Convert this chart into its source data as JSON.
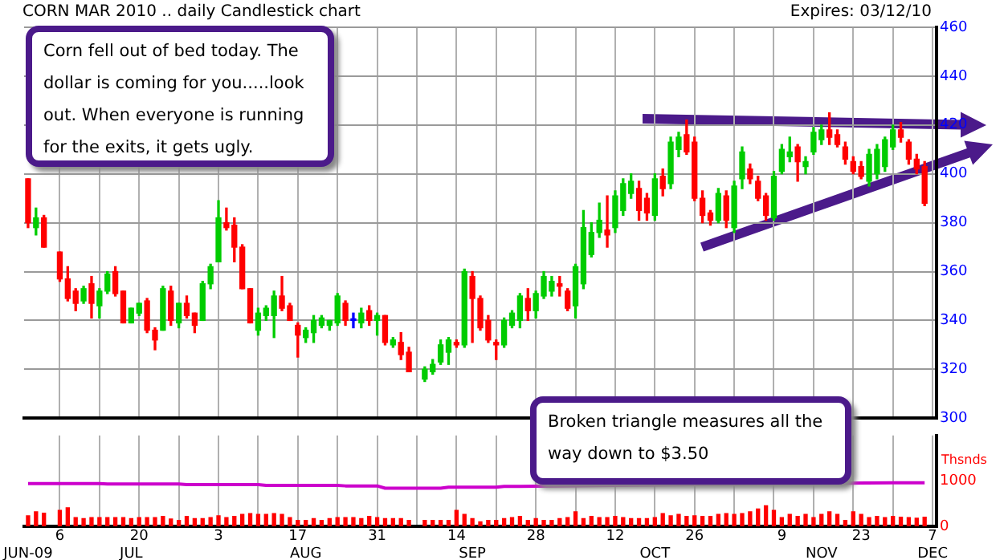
{
  "chart_data": [
    {
      "type": "candlestick",
      "title": "CORN MAR 2010 .. daily Candlestick chart",
      "subtitle": "Expires: 03/12/10",
      "annotations": [
        "Corn fell out of bed today. The dollar is coming for you.....look out. When everyone is running for the exits, it gets ugly.",
        "Broken triangle measures all the way down to $3.50"
      ],
      "ohlc": [
        [
          398,
          398,
          378,
          380
        ],
        [
          378,
          386,
          375,
          382
        ],
        [
          382,
          383,
          370,
          370
        ],
        null,
        [
          368,
          368,
          356,
          357
        ],
        [
          357,
          362,
          348,
          349
        ],
        [
          352,
          353,
          344,
          347
        ],
        [
          348,
          354,
          347,
          353
        ],
        [
          355,
          358,
          341,
          347
        ],
        [
          346,
          353,
          341,
          352
        ],
        [
          352,
          360,
          351,
          359
        ],
        [
          360,
          362,
          350,
          351
        ],
        [
          352,
          352,
          339,
          339
        ],
        [
          339,
          345,
          339,
          345
        ],
        [
          343,
          347,
          342,
          347
        ],
        [
          348,
          349,
          335,
          336
        ],
        [
          336,
          337,
          328,
          332
        ],
        [
          336,
          354,
          336,
          353
        ],
        [
          352,
          354,
          338,
          340
        ],
        [
          339,
          347,
          337,
          347
        ],
        [
          347,
          350,
          341,
          342
        ],
        [
          343,
          343,
          335,
          338
        ],
        [
          340,
          356,
          340,
          355
        ],
        [
          355,
          363,
          353,
          362
        ],
        [
          364,
          389,
          364,
          382
        ],
        [
          380,
          386,
          377,
          378
        ],
        [
          379,
          382,
          364,
          370
        ],
        [
          370,
          371,
          353,
          353
        ],
        [
          353,
          353,
          339,
          339
        ],
        [
          336,
          345,
          334,
          343
        ],
        [
          342,
          346,
          340,
          345
        ],
        [
          342,
          352,
          333,
          350
        ],
        [
          350,
          358,
          344,
          345
        ],
        [
          346,
          347,
          340,
          340
        ],
        [
          338,
          339,
          325,
          334
        ],
        [
          333,
          337,
          331,
          336
        ],
        [
          335,
          342,
          331,
          340
        ],
        [
          338,
          342,
          337,
          341
        ],
        [
          338,
          340,
          336,
          340
        ],
        [
          339,
          351,
          338,
          350
        ],
        [
          347,
          348,
          338,
          340
        ],
        [
          340,
          343,
          337,
          340
        ],
        [
          339,
          345,
          337,
          343
        ],
        [
          344,
          346,
          338,
          340
        ],
        [
          340,
          343,
          334,
          342
        ],
        [
          342,
          342,
          330,
          331
        ],
        [
          330,
          333,
          329,
          332
        ],
        [
          331,
          335,
          324,
          326
        ],
        [
          327,
          329,
          319,
          319
        ],
        null,
        [
          316,
          321,
          315,
          320
        ],
        [
          319,
          324,
          318,
          322
        ],
        [
          323,
          332,
          322,
          330
        ],
        [
          327,
          333,
          322,
          332
        ],
        [
          331,
          332,
          329,
          330
        ],
        [
          330,
          361,
          329,
          360
        ],
        [
          358,
          360,
          331,
          349
        ],
        [
          349,
          350,
          336,
          337
        ],
        [
          340,
          342,
          331,
          332
        ],
        [
          331,
          332,
          324,
          330
        ],
        [
          330,
          341,
          329,
          340
        ],
        [
          338,
          344,
          337,
          343
        ],
        [
          340,
          351,
          337,
          350
        ],
        [
          349,
          353,
          340,
          344
        ],
        [
          344,
          352,
          341,
          351
        ],
        [
          350,
          360,
          349,
          358
        ],
        [
          352,
          358,
          350,
          356
        ],
        [
          355,
          358,
          350,
          354
        ],
        [
          352,
          353,
          344,
          345
        ],
        [
          346,
          363,
          341,
          362
        ],
        [
          355,
          385,
          353,
          378
        ],
        [
          367,
          380,
          366,
          376
        ],
        [
          376,
          388,
          374,
          381
        ],
        [
          377,
          391,
          370,
          375
        ],
        [
          378,
          393,
          376,
          391
        ],
        [
          385,
          398,
          383,
          396
        ],
        [
          392,
          400,
          390,
          397
        ],
        [
          394,
          397,
          381,
          385
        ],
        [
          390,
          392,
          381,
          384
        ],
        [
          383,
          400,
          381,
          398
        ],
        [
          399,
          402,
          391,
          394
        ],
        [
          396,
          415,
          394,
          413
        ],
        [
          410,
          417,
          407,
          415
        ],
        [
          416,
          422,
          408,
          409
        ],
        [
          413,
          415,
          389,
          390
        ],
        [
          390,
          393,
          380,
          383
        ],
        [
          384,
          385,
          379,
          381
        ],
        [
          381,
          394,
          380,
          392
        ],
        [
          391,
          393,
          378,
          381
        ],
        [
          378,
          397,
          376,
          395
        ],
        [
          398,
          411,
          394,
          409
        ],
        [
          402,
          404,
          396,
          398
        ],
        [
          397,
          399,
          389,
          390
        ],
        [
          391,
          392,
          381,
          383
        ],
        [
          382,
          401,
          381,
          399
        ],
        [
          401,
          412,
          400,
          410
        ],
        [
          407,
          415,
          405,
          409
        ],
        [
          411,
          412,
          397,
          405
        ],
        [
          403,
          407,
          400,
          405
        ],
        [
          409,
          419,
          408,
          417
        ],
        [
          414,
          420,
          412,
          418
        ],
        [
          418,
          425,
          412,
          415
        ],
        [
          416,
          418,
          411,
          412
        ],
        [
          411,
          413,
          404,
          406
        ],
        [
          405,
          407,
          400,
          401
        ],
        [
          403,
          405,
          398,
          399
        ],
        [
          397,
          410,
          395,
          408
        ],
        [
          400,
          412,
          398,
          410
        ],
        [
          403,
          415,
          401,
          414
        ],
        [
          411,
          420,
          410,
          418
        ],
        [
          418,
          421,
          413,
          415
        ],
        [
          413,
          414,
          404,
          406
        ],
        [
          406,
          408,
          400,
          402
        ],
        [
          403,
          405,
          387,
          388
        ],
        null
      ],
      "colors": [
        "#ff0000",
        "#00cc00",
        "#ff0000",
        null,
        "#ff0000",
        "#ff0000",
        "#ff0000",
        "#00cc00",
        "#ff0000",
        "#00cc00",
        "#00cc00",
        "#ff0000",
        "#ff0000",
        "#00cc00",
        "#00cc00",
        "#ff0000",
        "#ff0000",
        "#00cc00",
        "#ff0000",
        "#00cc00",
        "#ff0000",
        "#ff0000",
        "#00cc00",
        "#00cc00",
        "#00cc00",
        "#ff0000",
        "#ff0000",
        "#ff0000",
        "#ff0000",
        "#00cc00",
        "#00cc00",
        "#00cc00",
        "#ff0000",
        "#ff0000",
        "#ff0000",
        "#00cc00",
        "#00cc00",
        "#00cc00",
        "#00cc00",
        "#00cc00",
        "#ff0000",
        "#0000ff",
        "#00cc00",
        "#ff0000",
        "#00cc00",
        "#ff0000",
        "#00cc00",
        "#ff0000",
        "#ff0000",
        null,
        "#00cc00",
        "#00cc00",
        "#00cc00",
        "#00cc00",
        "#ff0000",
        "#00cc00",
        "#ff0000",
        "#ff0000",
        "#ff0000",
        "#ff0000",
        "#00cc00",
        "#00cc00",
        "#00cc00",
        "#ff0000",
        "#00cc00",
        "#00cc00",
        "#00cc00",
        "#ff0000",
        "#ff0000",
        "#00cc00",
        "#00cc00",
        "#00cc00",
        "#00cc00",
        "#ff0000",
        "#00cc00",
        "#00cc00",
        "#00cc00",
        "#ff0000",
        "#ff0000",
        "#00cc00",
        "#ff0000",
        "#00cc00",
        "#00cc00",
        "#ff0000",
        "#ff0000",
        "#ff0000",
        "#ff0000",
        "#00cc00",
        "#ff0000",
        "#00cc00",
        "#00cc00",
        "#ff0000",
        "#ff0000",
        "#ff0000",
        "#00cc00",
        "#00cc00",
        "#00cc00",
        "#ff0000",
        "#00cc00",
        "#00cc00",
        "#00cc00",
        "#ff0000",
        "#ff0000",
        "#ff0000",
        "#ff0000",
        "#ff0000",
        "#00cc00",
        "#00cc00",
        "#00cc00",
        "#00cc00",
        "#ff0000",
        "#ff0000",
        "#ff0000",
        "#ff0000",
        null
      ],
      "ylim": [
        300,
        460
      ],
      "yticks": [
        300,
        320,
        340,
        360,
        380,
        400,
        420,
        440,
        460
      ],
      "tick_labels": "y",
      "grid": true
    },
    {
      "type": "bar",
      "ylabel": "Thsnds",
      "categories": [
        "\nJUN-09",
        null,
        null,
        null,
        "6",
        null,
        null,
        null,
        null,
        null,
        null,
        null,
        null,
        "\nJUL",
        "20",
        null,
        null,
        null,
        null,
        null,
        null,
        null,
        null,
        null,
        "3",
        null,
        null,
        null,
        null,
        null,
        null,
        null,
        null,
        null,
        "17",
        "\nAUG",
        null,
        null,
        null,
        null,
        null,
        null,
        null,
        null,
        "31",
        null,
        null,
        null,
        null,
        null,
        null,
        null,
        null,
        null,
        "14",
        null,
        "\nSEP",
        null,
        null,
        null,
        null,
        null,
        null,
        null,
        "28",
        null,
        null,
        null,
        null,
        null,
        null,
        null,
        null,
        null,
        "12",
        null,
        null,
        null,
        null,
        "\nOCT",
        null,
        null,
        null,
        null,
        "26",
        null,
        null,
        null,
        null,
        null,
        null,
        null,
        null,
        null,
        null,
        "9",
        null,
        null,
        null,
        null,
        "\nNOV",
        null,
        null,
        null,
        null,
        "23",
        null,
        null,
        null,
        null,
        null,
        null,
        null,
        null,
        "7\nDEC"
      ],
      "series": [
        {
          "type": "bar",
          "color": "#ff0000",
          "values": [
            230,
            320,
            290,
            null,
            350,
            410,
            190,
            170,
            190,
            190,
            190,
            190,
            190,
            170,
            190,
            190,
            190,
            220,
            160,
            130,
            220,
            170,
            170,
            190,
            230,
            190,
            220,
            260,
            280,
            260,
            260,
            280,
            260,
            190,
            130,
            130,
            170,
            130,
            170,
            190,
            190,
            190,
            170,
            220,
            190,
            170,
            170,
            170,
            130,
            null,
            130,
            130,
            130,
            130,
            350,
            260,
            170,
            100,
            130,
            130,
            170,
            190,
            220,
            130,
            170,
            130,
            130,
            170,
            190,
            320,
            170,
            220,
            190,
            190,
            220,
            190,
            170,
            170,
            170,
            190,
            280,
            230,
            260,
            220,
            230,
            220,
            220,
            260,
            280,
            260,
            280,
            320,
            380,
            450,
            350,
            190,
            260,
            220,
            260,
            190,
            260,
            320,
            260,
            130,
            320,
            260,
            190,
            220,
            190,
            220,
            200,
            190,
            180,
            200,
            null
          ]
        },
        {
          "type": "line",
          "color": "#cc00cc",
          "values": [
            940,
            940,
            940,
            940,
            940,
            940,
            940,
            940,
            940,
            940,
            930,
            930,
            930,
            930,
            930,
            930,
            930,
            930,
            930,
            930,
            920,
            920,
            920,
            920,
            920,
            920,
            920,
            920,
            920,
            920,
            900,
            900,
            900,
            900,
            900,
            900,
            900,
            900,
            900,
            900,
            890,
            890,
            890,
            890,
            890,
            840,
            840,
            840,
            840,
            840,
            840,
            840,
            840,
            860,
            860,
            860,
            860,
            860,
            860,
            860,
            880,
            880,
            880,
            null,
            null,
            null,
            null,
            null,
            null,
            null,
            null,
            null,
            null,
            null,
            null,
            null,
            null,
            null,
            null,
            null,
            null,
            null,
            null,
            null,
            null,
            null,
            null,
            null,
            null,
            null,
            null,
            null,
            null,
            null,
            null,
            null,
            null,
            null,
            null,
            null,
            null,
            null,
            null,
            null,
            null,
            null,
            null,
            null,
            null,
            960,
            960,
            960,
            960,
            960,
            null
          ]
        }
      ],
      "ylim": [
        0,
        2000
      ],
      "yticks": [
        0,
        1000
      ],
      "grid": "x"
    }
  ]
}
